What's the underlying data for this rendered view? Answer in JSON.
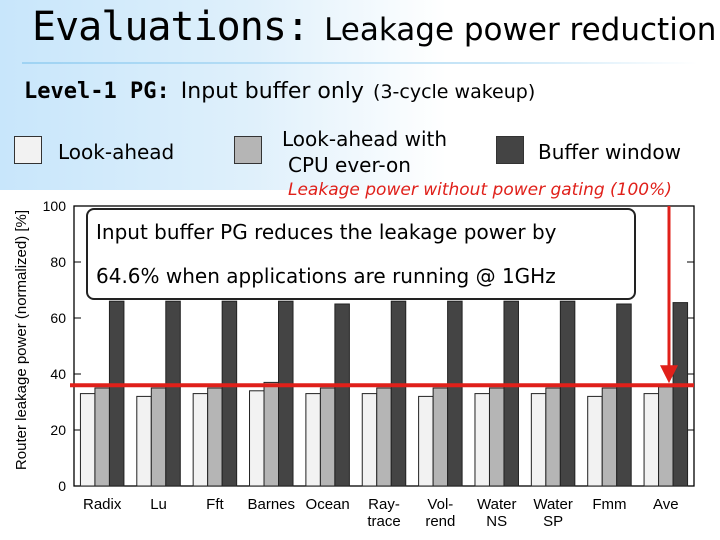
{
  "slide": {
    "title_main": "Evaluations:",
    "title_sub": "Leakage power reduction",
    "subtitle_level": "Level-1 PG:",
    "subtitle_desc": "Input buffer only",
    "subtitle_note": "(3-cycle wakeup)",
    "annotation_100": "Leakage power without power gating (100%)",
    "callout_line1": "Input buffer PG reduces the leakage power by",
    "callout_line2": "64.6% when applications are running @ 1GHz"
  },
  "legend": [
    {
      "label": "Look-ahead",
      "color": "#f2f2f2"
    },
    {
      "label_line1": "Look-ahead with",
      "label_line2": "CPU ever-on",
      "color": "#b5b5b5"
    },
    {
      "label": "Buffer window",
      "color": "#444444"
    }
  ],
  "chart_data": {
    "type": "bar",
    "ylabel": "Router leakage power (normalized) [%]",
    "ylim": [
      0,
      100
    ],
    "yticks": [
      0,
      20,
      40,
      60,
      80,
      100
    ],
    "categories": [
      {
        "line1": "Radix",
        "line2": ""
      },
      {
        "line1": "Lu",
        "line2": ""
      },
      {
        "line1": "Fft",
        "line2": ""
      },
      {
        "line1": "Barnes",
        "line2": ""
      },
      {
        "line1": "Ocean",
        "line2": ""
      },
      {
        "line1": "Ray-",
        "line2": "trace"
      },
      {
        "line1": "Vol-",
        "line2": "rend"
      },
      {
        "line1": "Water",
        "line2": "NS"
      },
      {
        "line1": "Water",
        "line2": "SP"
      },
      {
        "line1": "Fmm",
        "line2": ""
      },
      {
        "line1": "Ave",
        "line2": ""
      }
    ],
    "series": [
      {
        "name": "Look-ahead",
        "color": "#f2f2f2",
        "values": [
          33,
          32,
          33,
          34,
          33,
          33,
          32,
          33,
          33,
          32,
          33
        ]
      },
      {
        "name": "Look-ahead with CPU ever-on",
        "color": "#b5b5b5",
        "values": [
          35,
          35,
          35,
          37,
          35,
          35,
          35,
          35,
          35,
          35,
          35.4
        ]
      },
      {
        "name": "Buffer window",
        "color": "#444444",
        "values": [
          66,
          66,
          66,
          66,
          65,
          66,
          66,
          66,
          66,
          65,
          65.5
        ]
      }
    ],
    "reference_line": 36,
    "arrow_from": 100,
    "arrow_to": 36
  }
}
